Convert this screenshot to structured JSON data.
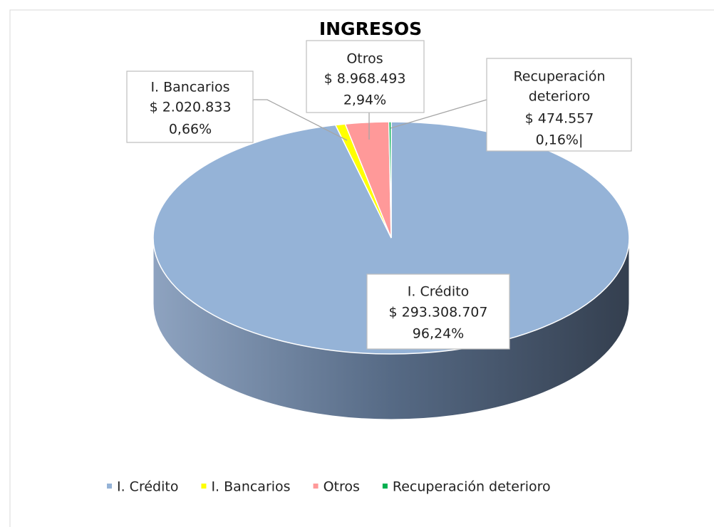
{
  "chart_data": {
    "type": "pie3d",
    "title": "INGRESOS",
    "categories": [
      "I. Crédito",
      "I. Bancarios",
      "Otros",
      "Recuperación deterioro"
    ],
    "values": [
      293308707,
      2020833,
      8968493,
      474557
    ],
    "value_labels": [
      "$ 293.308.707",
      "$ 2.020.833",
      "$ 8.968.493",
      "$ 474.557"
    ],
    "percentages": [
      96.24,
      0.66,
      2.94,
      0.16
    ],
    "percent_labels": [
      "96,24%",
      "0,66%",
      "2,94%",
      "0,16%|"
    ],
    "colors": [
      "#95b3d7",
      "#ffff00",
      "#ff9999",
      "#00b050"
    ],
    "legend": "bottom"
  }
}
